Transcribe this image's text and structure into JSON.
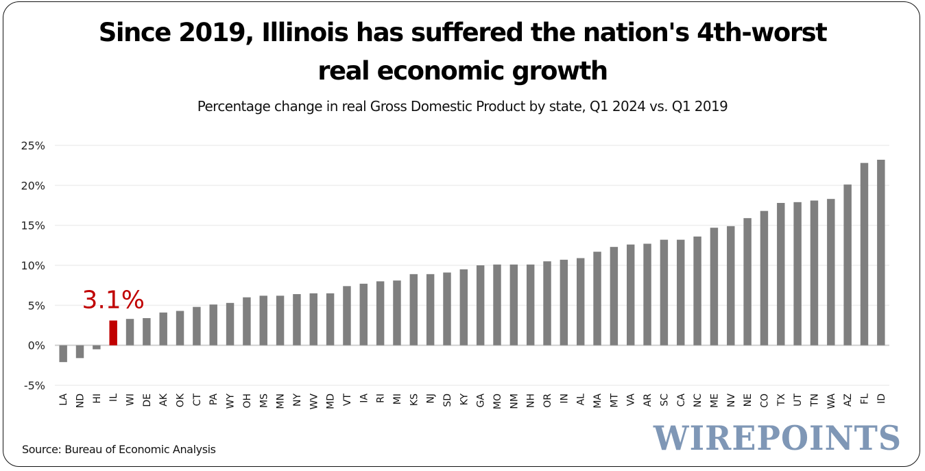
{
  "header": {
    "title_line1": "Since 2019, Illinois has suffered the nation's 4th-worst",
    "title_line2": "real economic growth",
    "subtitle": "Percentage change in real Gross Domestic Product by state, Q1 2024 vs. Q1 2019"
  },
  "footer": {
    "source": "Source: Bureau of Economic Analysis",
    "logo": "WIREPOINTS"
  },
  "colors": {
    "bar": "#7f7f7f",
    "highlight": "#c00000",
    "grid": "#eeeeee",
    "baseline": "#d0d0d0",
    "logo": "#7f97b6"
  },
  "chart_data": {
    "type": "bar",
    "title": "Since 2019, Illinois has suffered the nation's 4th-worst real economic growth",
    "subtitle": "Percentage change in real Gross Domestic Product by state, Q1 2024 vs. Q1 2019",
    "xlabel": "",
    "ylabel": "",
    "ylim": [
      -5,
      25
    ],
    "yticks": [
      -5,
      0,
      5,
      10,
      15,
      20,
      25
    ],
    "ytick_labels": [
      "-5%",
      "0%",
      "5%",
      "10%",
      "15%",
      "20%",
      "25%"
    ],
    "grid": true,
    "legend": "none",
    "highlight_category": "IL",
    "annotation": {
      "category": "IL",
      "text": "3.1%"
    },
    "categories": [
      "LA",
      "ND",
      "HI",
      "IL",
      "WI",
      "DE",
      "AK",
      "OK",
      "CT",
      "PA",
      "WY",
      "OH",
      "MS",
      "MN",
      "NY",
      "WV",
      "MD",
      "VT",
      "IA",
      "RI",
      "MI",
      "KS",
      "NJ",
      "SD",
      "KY",
      "GA",
      "MO",
      "NM",
      "NH",
      "OR",
      "IN",
      "AL",
      "MA",
      "MT",
      "VA",
      "AR",
      "SC",
      "CA",
      "NC",
      "ME",
      "NV",
      "NE",
      "CO",
      "TX",
      "UT",
      "TN",
      "WA",
      "AZ",
      "FL",
      "ID"
    ],
    "values": [
      -2.1,
      -1.6,
      -0.5,
      3.1,
      3.3,
      3.4,
      4.1,
      4.3,
      4.8,
      5.1,
      5.3,
      6.0,
      6.2,
      6.2,
      6.4,
      6.5,
      6.5,
      7.4,
      7.7,
      8.0,
      8.1,
      8.9,
      8.9,
      9.1,
      9.5,
      10.0,
      10.1,
      10.1,
      10.1,
      10.5,
      10.7,
      10.9,
      11.7,
      12.3,
      12.6,
      12.7,
      13.2,
      13.2,
      13.6,
      14.7,
      14.9,
      15.9,
      16.8,
      17.8,
      17.9,
      18.1,
      18.3,
      20.1,
      22.8,
      23.2
    ]
  }
}
